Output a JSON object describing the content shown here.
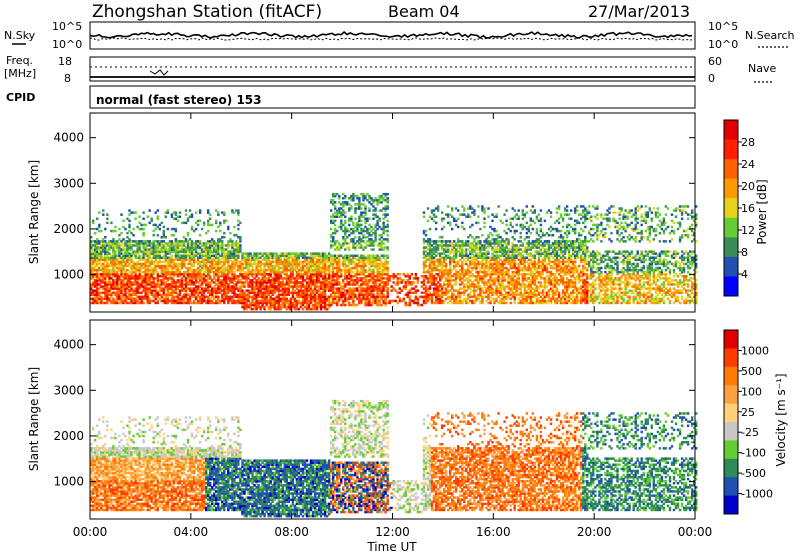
{
  "header": {
    "station": "Zhongshan Station (fitACF)",
    "beam": "Beam 04",
    "date": "27/Mar/2013"
  },
  "top_panels": {
    "nsky_label": "N.Sky",
    "nsky_ticks": [
      "10^5",
      "10^0"
    ],
    "nsearch_label": "N.Search",
    "freq_label_1": "Freq.",
    "freq_label_2": "[MHz]",
    "freq_ticks": [
      "18",
      "8"
    ],
    "nave_label": "Nave",
    "nave_ticks": [
      "60",
      "0"
    ],
    "cpid_label": "CPID",
    "cpid_value": "normal (fast stereo) 153"
  },
  "colors": {
    "power_scale": [
      "#0000ff",
      "#2050b0",
      "#3a8c5a",
      "#66cc33",
      "#e6d21e",
      "#ff9a00",
      "#ff6000",
      "#ff2000",
      "#e00000"
    ],
    "velocity_scale": [
      "#e00000",
      "#ff3b00",
      "#ff7a00",
      "#ffa040",
      "#ffd27a",
      "#c8c8c8",
      "#66cc33",
      "#2e8b57",
      "#2050b0",
      "#0000cc"
    ]
  },
  "chart_data": [
    {
      "type": "heatmap",
      "name": "power-panel",
      "ylabel": "Slant Range [km]",
      "yticks": [
        "4000",
        "3000",
        "2000",
        "1000"
      ],
      "ylim": [
        180,
        4540
      ],
      "colorbar_label": "Power [dB]",
      "colorbar_ticks": [
        "28",
        "24",
        "20",
        "16",
        "12",
        "8",
        "4"
      ],
      "colorbar_range": [
        0,
        30
      ]
    },
    {
      "type": "heatmap",
      "name": "velocity-panel",
      "ylabel": "Slant Range [km]",
      "yticks": [
        "4000",
        "3000",
        "2000",
        "1000"
      ],
      "ylim": [
        180,
        4540
      ],
      "colorbar_label": "Velocity [m s⁻¹]",
      "colorbar_ticks": [
        "1000",
        "500",
        "100",
        "25",
        "-25",
        "-100",
        "-500",
        "-1000"
      ]
    }
  ],
  "xaxis": {
    "ticks": [
      "00:00",
      "04:00",
      "08:00",
      "12:00",
      "16:00",
      "20:00",
      "00:00"
    ],
    "label": "Time UT",
    "range_hours": [
      0,
      24
    ]
  }
}
